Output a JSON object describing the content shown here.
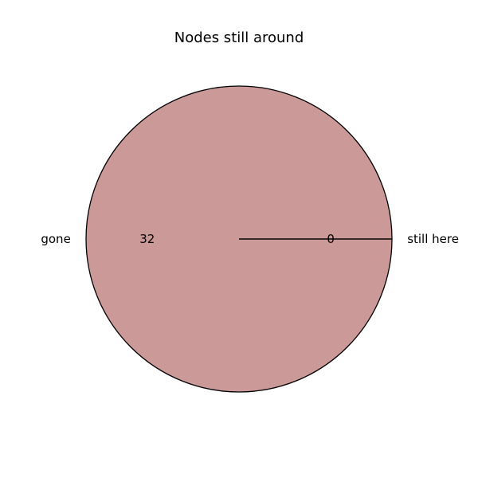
{
  "chart_data": {
    "type": "pie",
    "title": "Nodes still around",
    "slices": [
      {
        "label": "gone",
        "value": 32,
        "value_label": "32",
        "color": "#cc9999"
      },
      {
        "label": "still here",
        "value": 0,
        "value_label": "0",
        "color": "#cc9999"
      }
    ],
    "edge_color": "#000000",
    "start_angle_deg": 0,
    "direction": "counterclockwise",
    "legend": "none"
  }
}
